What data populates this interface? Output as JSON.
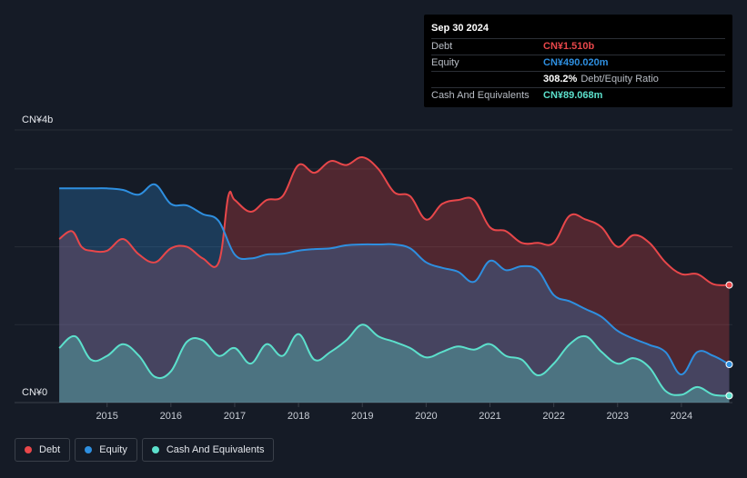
{
  "tooltip": {
    "date": "Sep 30 2024",
    "rows": [
      {
        "label": "Debt",
        "value": "CN¥1.510b",
        "color": "#e8474a",
        "extra": ""
      },
      {
        "label": "Equity",
        "value": "CN¥490.020m",
        "color": "#2e8fe0",
        "extra": ""
      },
      {
        "label": "",
        "value": "308.2%",
        "color": "#ffffff",
        "extra": "Debt/Equity Ratio"
      },
      {
        "label": "Cash And Equivalents",
        "value": "CN¥89.068m",
        "color": "#5ce0cc",
        "extra": ""
      }
    ]
  },
  "legend": [
    {
      "label": "Debt",
      "color": "#e8474a"
    },
    {
      "label": "Equity",
      "color": "#2e8fe0"
    },
    {
      "label": "Cash And Equivalents",
      "color": "#5ce0cc"
    }
  ],
  "chart_data": {
    "type": "area",
    "y_top_label": "CN¥4b",
    "y_bottom_label": "CN¥0",
    "ylim": [
      0,
      3.5
    ],
    "xlim": [
      2013.55,
      2024.8
    ],
    "x_ticks": [
      "2015",
      "2016",
      "2017",
      "2018",
      "2019",
      "2020",
      "2021",
      "2022",
      "2023",
      "2024"
    ],
    "series": [
      {
        "name": "Debt",
        "color": "#e8474a",
        "x": [
          2014.25,
          2014.45,
          2014.6,
          2014.75,
          2015.0,
          2015.25,
          2015.5,
          2015.75,
          2016.0,
          2016.25,
          2016.5,
          2016.75,
          2016.9,
          2017.0,
          2017.25,
          2017.5,
          2017.75,
          2018.0,
          2018.25,
          2018.5,
          2018.75,
          2019.0,
          2019.25,
          2019.5,
          2019.75,
          2020.0,
          2020.25,
          2020.5,
          2020.75,
          2021.0,
          2021.25,
          2021.5,
          2021.75,
          2022.0,
          2022.25,
          2022.5,
          2022.75,
          2023.0,
          2023.25,
          2023.5,
          2023.75,
          2024.0,
          2024.25,
          2024.5,
          2024.75
        ],
        "values": [
          2.1,
          2.2,
          2.0,
          1.95,
          1.95,
          2.1,
          1.9,
          1.8,
          1.98,
          2.0,
          1.85,
          1.8,
          2.65,
          2.6,
          2.45,
          2.6,
          2.65,
          3.05,
          2.95,
          3.1,
          3.05,
          3.15,
          3.0,
          2.7,
          2.65,
          2.35,
          2.55,
          2.6,
          2.6,
          2.25,
          2.2,
          2.05,
          2.05,
          2.05,
          2.4,
          2.35,
          2.25,
          2.0,
          2.15,
          2.05,
          1.8,
          1.65,
          1.65,
          1.52,
          1.51
        ]
      },
      {
        "name": "Equity",
        "color": "#2e8fe0",
        "x": [
          2014.25,
          2014.5,
          2014.75,
          2015.0,
          2015.25,
          2015.5,
          2015.75,
          2016.0,
          2016.25,
          2016.5,
          2016.75,
          2017.0,
          2017.25,
          2017.5,
          2017.75,
          2018.0,
          2018.25,
          2018.5,
          2018.75,
          2019.0,
          2019.25,
          2019.5,
          2019.75,
          2020.0,
          2020.25,
          2020.5,
          2020.75,
          2021.0,
          2021.25,
          2021.5,
          2021.75,
          2022.0,
          2022.25,
          2022.5,
          2022.75,
          2023.0,
          2023.25,
          2023.5,
          2023.75,
          2024.0,
          2024.25,
          2024.5,
          2024.75
        ],
        "values": [
          2.75,
          2.75,
          2.75,
          2.75,
          2.73,
          2.67,
          2.8,
          2.55,
          2.53,
          2.42,
          2.33,
          1.9,
          1.85,
          1.9,
          1.91,
          1.95,
          1.97,
          1.98,
          2.02,
          2.03,
          2.03,
          2.03,
          1.98,
          1.8,
          1.73,
          1.68,
          1.55,
          1.82,
          1.7,
          1.75,
          1.7,
          1.38,
          1.3,
          1.2,
          1.1,
          0.92,
          0.82,
          0.74,
          0.65,
          0.36,
          0.65,
          0.6,
          0.49
        ]
      },
      {
        "name": "Cash And Equivalents",
        "color": "#5ce0cc",
        "x": [
          2014.25,
          2014.5,
          2014.75,
          2015.0,
          2015.25,
          2015.5,
          2015.75,
          2016.0,
          2016.25,
          2016.5,
          2016.75,
          2017.0,
          2017.25,
          2017.5,
          2017.75,
          2018.0,
          2018.25,
          2018.5,
          2018.75,
          2019.0,
          2019.25,
          2019.5,
          2019.75,
          2020.0,
          2020.25,
          2020.5,
          2020.75,
          2021.0,
          2021.25,
          2021.5,
          2021.75,
          2022.0,
          2022.25,
          2022.5,
          2022.75,
          2023.0,
          2023.25,
          2023.5,
          2023.75,
          2024.0,
          2024.25,
          2024.5,
          2024.75
        ],
        "values": [
          0.7,
          0.85,
          0.55,
          0.6,
          0.75,
          0.6,
          0.33,
          0.4,
          0.78,
          0.8,
          0.6,
          0.7,
          0.5,
          0.75,
          0.6,
          0.88,
          0.55,
          0.65,
          0.8,
          1.0,
          0.85,
          0.78,
          0.7,
          0.58,
          0.65,
          0.72,
          0.68,
          0.75,
          0.6,
          0.55,
          0.35,
          0.5,
          0.75,
          0.85,
          0.65,
          0.5,
          0.57,
          0.45,
          0.15,
          0.1,
          0.2,
          0.1,
          0.089
        ]
      }
    ]
  }
}
